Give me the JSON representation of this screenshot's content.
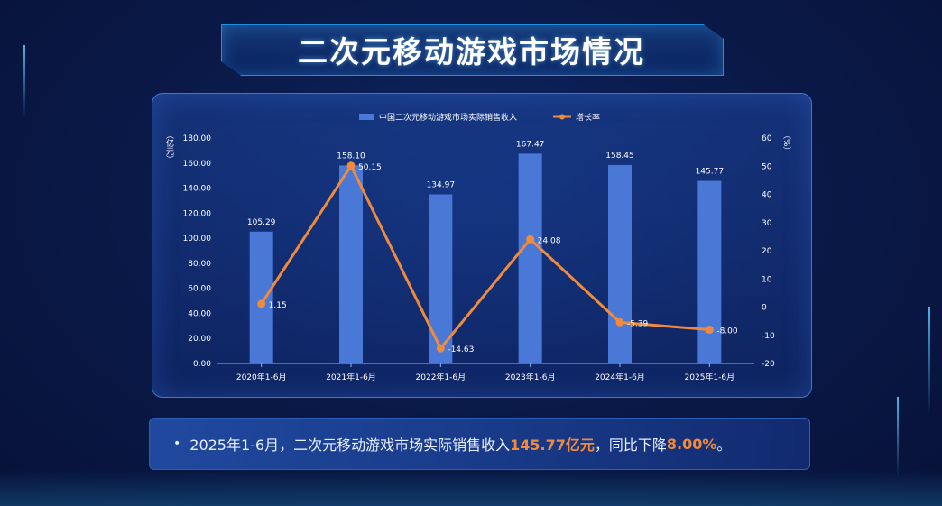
{
  "title": "二次元移动游戏市场情况",
  "legend": {
    "bar_label": "中国二次元移动游戏市场实际销售收入",
    "line_label": "增长率"
  },
  "axes": {
    "left_unit": "（亿元）",
    "right_unit": "（%）"
  },
  "chart_data": {
    "type": "bar",
    "categories": [
      "2020年1-6月",
      "2021年1-6月",
      "2022年1-6月",
      "2023年1-6月",
      "2024年1-6月",
      "2025年1-6月"
    ],
    "series": [
      {
        "name": "中国二次元移动游戏市场实际销售收入",
        "type": "bar",
        "axis": "left",
        "values": [
          105.29,
          158.1,
          134.97,
          167.47,
          158.45,
          145.77
        ],
        "labels": [
          "105.29",
          "158.10",
          "134.97",
          "167.47",
          "158.45",
          "145.77"
        ]
      },
      {
        "name": "增长率",
        "type": "line",
        "axis": "right",
        "values": [
          1.15,
          50.15,
          -14.63,
          24.08,
          -5.39,
          -8.0
        ],
        "labels": [
          "1.15",
          "50.15",
          "-14.63",
          "24.08",
          "-5.39",
          "-8.00"
        ]
      }
    ],
    "y_left": {
      "range": [
        0,
        180
      ],
      "ticks": [
        "0.00",
        "20.00",
        "40.00",
        "60.00",
        "80.00",
        "100.00",
        "120.00",
        "140.00",
        "160.00",
        "180.00"
      ]
    },
    "y_right": {
      "range": [
        -20,
        60
      ],
      "ticks": [
        "-20",
        "-10",
        "0",
        "10",
        "20",
        "30",
        "40",
        "50",
        "60"
      ]
    },
    "colors": {
      "bar": "#4a78d6",
      "line": "#f08a3c",
      "label": "#ffffff"
    },
    "legend_position": "top-center",
    "grid": false
  },
  "summary": {
    "bullet": "•",
    "part1": "2025年1-6月，二次元移动游戏市场实际销售收入",
    "value": "145.77亿元",
    "part2": "，同比下降",
    "rate": "8.00%",
    "end": "。"
  }
}
